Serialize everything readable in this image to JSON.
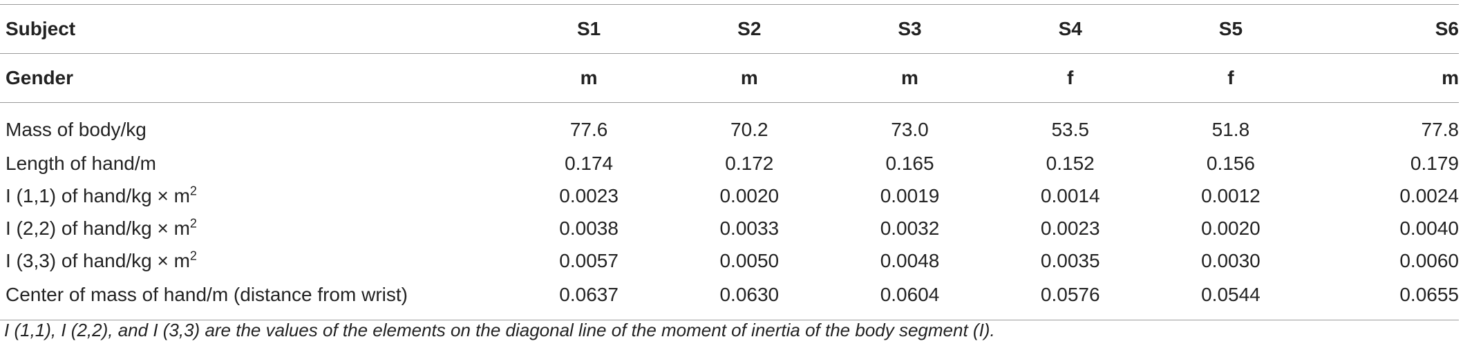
{
  "table": {
    "header": {
      "label": "Subject",
      "subjects": [
        "S1",
        "S2",
        "S3",
        "S4",
        "S5",
        "S6"
      ]
    },
    "gender": {
      "label": "Gender",
      "values": [
        "m",
        "m",
        "m",
        "f",
        "f",
        "m"
      ]
    },
    "rows": [
      {
        "label": "Mass of body/kg",
        "sup": "",
        "values": [
          "77.6",
          "70.2",
          "73.0",
          "53.5",
          "51.8",
          "77.8"
        ]
      },
      {
        "label": "Length of hand/m",
        "sup": "",
        "values": [
          "0.174",
          "0.172",
          "0.165",
          "0.152",
          "0.156",
          "0.179"
        ]
      },
      {
        "label": "I (1,1) of hand/kg × m",
        "sup": "2",
        "values": [
          "0.0023",
          "0.0020",
          "0.0019",
          "0.0014",
          "0.0012",
          "0.0024"
        ]
      },
      {
        "label": "I (2,2) of hand/kg × m",
        "sup": "2",
        "values": [
          "0.0038",
          "0.0033",
          "0.0032",
          "0.0023",
          "0.0020",
          "0.0040"
        ]
      },
      {
        "label": "I (3,3) of hand/kg × m",
        "sup": "2",
        "values": [
          "0.0057",
          "0.0050",
          "0.0048",
          "0.0035",
          "0.0030",
          "0.0060"
        ]
      },
      {
        "label": "Center of mass of hand/m (distance from wrist)",
        "sup": "",
        "values": [
          "0.0637",
          "0.0630",
          "0.0604",
          "0.0576",
          "0.0544",
          "0.0655"
        ]
      }
    ]
  },
  "footnote": "I (1,1), I (2,2), and I (3,3) are the values of the elements on the diagonal line of the moment of inertia of the body segment (I)."
}
